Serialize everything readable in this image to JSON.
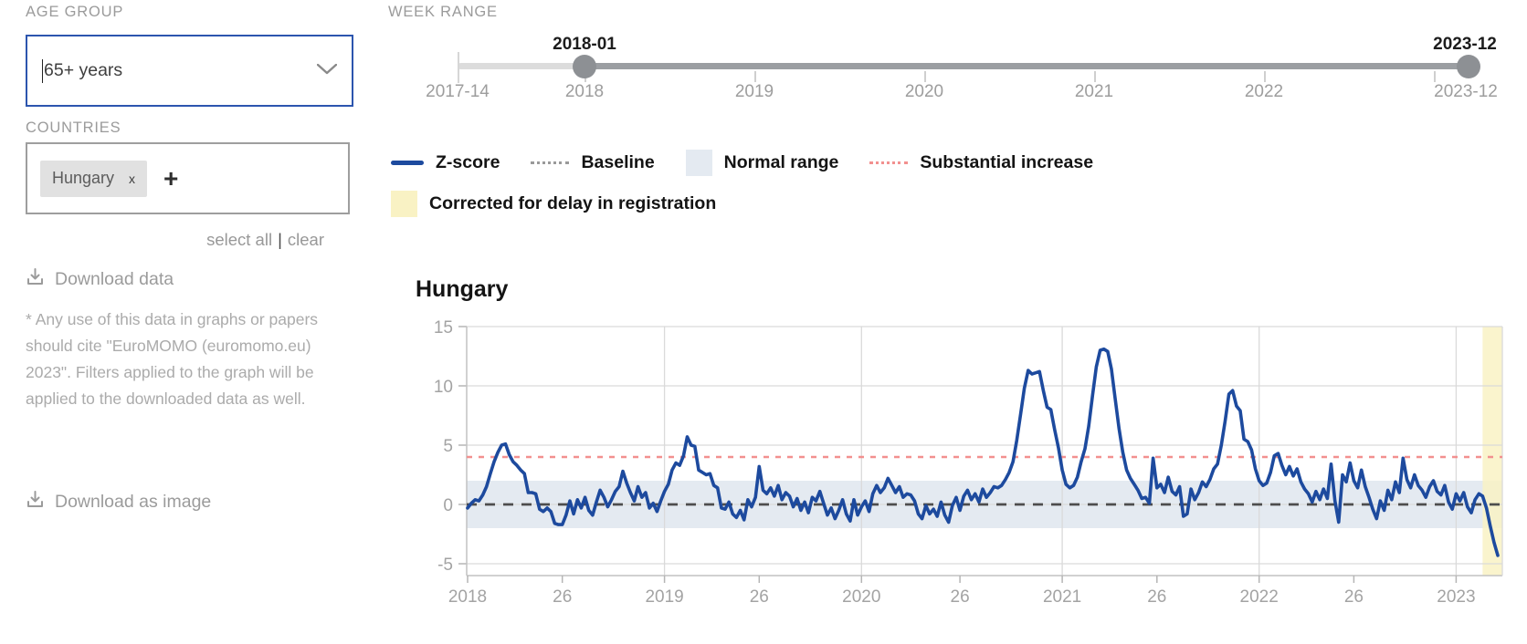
{
  "sidebar": {
    "age_group_label": "AGE GROUP",
    "age_group_value": "65+ years",
    "countries_label": "COUNTRIES",
    "chips": [
      {
        "label": "Hungary",
        "remove": "x"
      }
    ],
    "add_label": "+",
    "select_all": "select all",
    "sep": "|",
    "clear": "clear",
    "download_data": "Download data",
    "footnote": "* Any use of this data in graphs or papers should cite \"EuroMOMO (euromomo.eu) 2023\". Filters applied to the graph will be applied to the downloaded data as well.",
    "download_image": "Download as image"
  },
  "week_range": {
    "label": "WEEK RANGE",
    "start_value": "2018-01",
    "end_value": "2023-12",
    "ticks": [
      "2017-14",
      "2018",
      "2019",
      "2020",
      "2021",
      "2022",
      "2023-12"
    ]
  },
  "legend": {
    "items": [
      {
        "label": "Z-score",
        "swatch": "line",
        "color": "#1d4a9e"
      },
      {
        "label": "Baseline",
        "swatch": "dotted",
        "color": "#9a9a9a"
      },
      {
        "label": "Normal range",
        "swatch": "rect",
        "color": "#e4eaf1"
      },
      {
        "label": "Substantial increase",
        "swatch": "dotted",
        "color": "#f2908f"
      },
      {
        "label": "Corrected for delay in registration",
        "swatch": "rect",
        "color": "#f9f2c4"
      }
    ]
  },
  "chart_data": {
    "type": "line",
    "title": "Hungary",
    "series_name": "Z-score",
    "x_start_week": "2018-01",
    "x_end_week": "2023-12",
    "ylim": [
      -6,
      15
    ],
    "y_ticks": [
      15,
      10,
      5,
      0,
      -5
    ],
    "x_tick_labels": [
      "2018",
      "26",
      "2019",
      "26",
      "2020",
      "26",
      "2021",
      "26",
      "2022",
      "26",
      "2023"
    ],
    "x_ticks": [
      {
        "label": "2018",
        "week": 0
      },
      {
        "label": "26",
        "week": 25
      },
      {
        "label": "2019",
        "week": 52
      },
      {
        "label": "26",
        "week": 77
      },
      {
        "label": "2020",
        "week": 104
      },
      {
        "label": "26",
        "week": 130
      },
      {
        "label": "2021",
        "week": 157
      },
      {
        "label": "26",
        "week": 182
      },
      {
        "label": "2022",
        "week": 209
      },
      {
        "label": "26",
        "week": 234
      },
      {
        "label": "2023",
        "week": 261
      }
    ],
    "year_grid_weeks": [
      52,
      104,
      157,
      209,
      261
    ],
    "baseline": 0,
    "substantial_increase": 4,
    "normal_range": [
      -2,
      2
    ],
    "corrected_weeks": 4,
    "grid": true,
    "colors": {
      "line": "#1d4a9e",
      "baseline": "#4d4d4d",
      "substantial": "#f2908f",
      "normal_range": "#e4eaf1",
      "corrected": "#f9f2c4",
      "grid": "#dadada",
      "axis_text": "#a3a3a3"
    },
    "values": [
      -0.3,
      0.1,
      0.4,
      0.3,
      0.8,
      1.5,
      2.6,
      3.6,
      4.4,
      5.0,
      5.1,
      4.2,
      3.6,
      3.3,
      2.9,
      2.6,
      1.0,
      1.0,
      0.9,
      -0.4,
      -0.6,
      -0.3,
      -0.6,
      -1.6,
      -1.7,
      -1.7,
      -0.9,
      0.3,
      -0.8,
      0.4,
      -0.3,
      0.6,
      -0.5,
      -0.9,
      0.2,
      1.2,
      0.6,
      -0.2,
      0.4,
      1.1,
      1.5,
      2.8,
      1.8,
      1.0,
      0.3,
      1.5,
      0.6,
      1.0,
      -0.3,
      0.1,
      -0.6,
      0.3,
      1.1,
      1.7,
      2.9,
      3.5,
      3.3,
      4.1,
      5.7,
      5.0,
      4.9,
      2.9,
      2.7,
      2.5,
      2.6,
      1.6,
      1.4,
      -0.3,
      -0.4,
      0.2,
      -0.8,
      -1.1,
      -0.5,
      -1.3,
      0.4,
      -0.2,
      0.6,
      3.2,
      1.2,
      0.9,
      1.4,
      0.7,
      1.6,
      0.4,
      1.0,
      0.7,
      -0.2,
      0.5,
      -0.5,
      0.2,
      -0.7,
      0.6,
      0.3,
      1.1,
      0.1,
      -0.9,
      -0.3,
      -1.2,
      -0.5,
      0.4,
      -0.8,
      -1.4,
      0.4,
      -0.9,
      -0.2,
      0.3,
      -0.6,
      0.9,
      1.6,
      1.0,
      1.4,
      2.2,
      1.6,
      1.0,
      1.5,
      0.6,
      0.9,
      0.8,
      0.3,
      -0.8,
      -1.2,
      -0.1,
      -0.8,
      -0.4,
      -1.0,
      0.2,
      -0.9,
      -1.5,
      -0.1,
      0.6,
      -0.5,
      0.7,
      1.2,
      0.4,
      0.9,
      0.2,
      1.3,
      0.6,
      1.0,
      1.5,
      1.4,
      1.6,
      2.1,
      2.7,
      3.6,
      5.4,
      7.6,
      9.8,
      11.3,
      11.0,
      11.1,
      11.2,
      9.6,
      8.2,
      8.0,
      6.3,
      4.8,
      2.9,
      1.7,
      1.4,
      1.6,
      2.3,
      3.6,
      4.7,
      6.6,
      9.2,
      11.6,
      13.0,
      13.1,
      12.9,
      11.4,
      8.9,
      6.4,
      4.4,
      2.9,
      2.2,
      1.7,
      1.2,
      0.5,
      0.6,
      0.1,
      3.9,
      1.4,
      1.7,
      1.0,
      2.3,
      1.1,
      0.8,
      1.5,
      -1.0,
      -0.8,
      1.3,
      0.4,
      1.0,
      1.9,
      1.5,
      2.1,
      3.0,
      3.4,
      5.0,
      7.0,
      9.3,
      9.6,
      8.3,
      7.9,
      5.5,
      5.3,
      4.6,
      3.0,
      2.0,
      1.6,
      1.8,
      2.7,
      4.1,
      4.3,
      3.3,
      2.5,
      3.2,
      2.4,
      3.0,
      1.9,
      1.3,
      0.9,
      0.2,
      1.1,
      0.4,
      1.3,
      0.5,
      3.4,
      0.3,
      -1.5,
      2.5,
      1.9,
      3.5,
      2.0,
      1.4,
      2.9,
      1.5,
      0.6,
      -0.4,
      -1.2,
      0.3,
      -0.5,
      1.2,
      0.4,
      1.9,
      1.0,
      3.9,
      2.1,
      1.4,
      2.5,
      1.6,
      1.2,
      0.6,
      1.5,
      2.0,
      1.1,
      0.8,
      1.6,
      0.2,
      -0.4,
      0.9,
      0.3,
      1.0,
      -0.2,
      -0.7,
      0.4,
      0.9,
      0.7,
      -0.3,
      -1.8,
      -3.2,
      -4.3
    ]
  }
}
